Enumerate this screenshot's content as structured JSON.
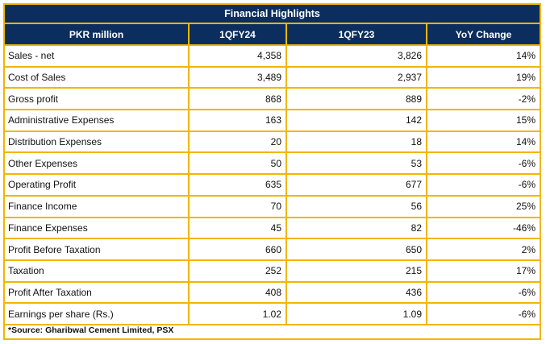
{
  "title": "Financial Highlights",
  "columns": [
    "PKR million",
    "1QFY24",
    "1QFY23",
    "YoY Change"
  ],
  "rows": [
    [
      "Sales - net",
      "4,358",
      "3,826",
      "14%"
    ],
    [
      "Cost of Sales",
      "3,489",
      "2,937",
      "19%"
    ],
    [
      "Gross profit",
      "868",
      "889",
      "-2%"
    ],
    [
      "Administrative Expenses",
      "163",
      "142",
      "15%"
    ],
    [
      "Distribution Expenses",
      "20",
      "18",
      "14%"
    ],
    [
      "Other Expenses",
      "50",
      "53",
      "-6%"
    ],
    [
      "Operating Profit",
      "635",
      "677",
      "-6%"
    ],
    [
      "Finance Income",
      "70",
      "56",
      "25%"
    ],
    [
      "Finance Expenses",
      "45",
      "82",
      "-46%"
    ],
    [
      "Profit Before Taxation",
      "660",
      "650",
      "2%"
    ],
    [
      "Taxation",
      "252",
      "215",
      "17%"
    ],
    [
      "Profit After Taxation",
      "408",
      "436",
      "-6%"
    ],
    [
      "Earnings per share (Rs.)",
      "1.02",
      "1.09",
      "-6%"
    ]
  ],
  "source": "*Source: Gharibwal Cement Limited, PSX",
  "colors": {
    "header_bg": "#0b2e5e",
    "border": "#f2b600",
    "header_text": "#ffffff"
  }
}
